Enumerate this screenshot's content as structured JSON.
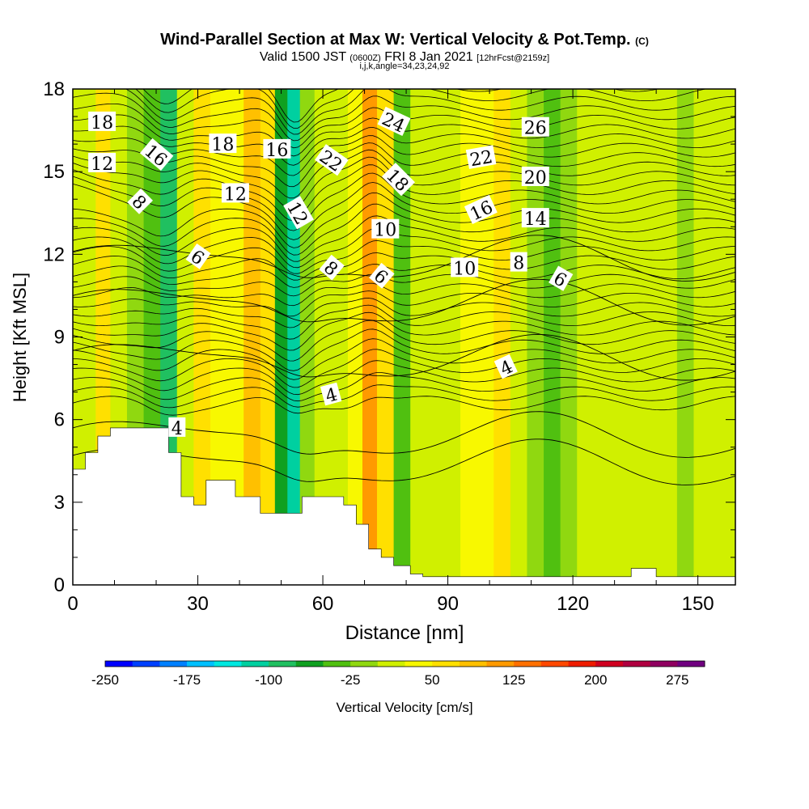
{
  "title": {
    "main": "Wind-Parallel Section at Max W: Vertical Velocity & Pot.Temp.",
    "copyright": "(C)",
    "valid_prefix": "Valid 1500 JST",
    "valid_utc": "(0600Z)",
    "valid_date": "FRI 8 Jan 2021",
    "forecast": "[12hrFcst@2159z]",
    "indices": "i,j,k,angle=34,23,24,92"
  },
  "chart_data": {
    "type": "heatmap",
    "xlabel": "Distance [nm]",
    "ylabel": "Height [Kft MSL]",
    "xlim": [
      0,
      159
    ],
    "ylim": [
      0,
      18
    ],
    "xticks": [
      0,
      30,
      60,
      90,
      120,
      150
    ],
    "yticks": [
      0,
      3,
      6,
      9,
      12,
      15,
      18
    ],
    "colorbar": {
      "label": "Vertical Velocity [cm/s]",
      "range": [
        -250,
        300
      ],
      "step": 25,
      "tick_values": [
        -250,
        -175,
        -100,
        -25,
        50,
        125,
        200,
        275
      ],
      "tick_labels": [
        "-250",
        "-175",
        "-100",
        "-25",
        "50",
        "125",
        "200",
        "275"
      ],
      "colors": [
        "#0000ff",
        "#0040ff",
        "#0080ff",
        "#00c0ff",
        "#00e8e0",
        "#00d0a0",
        "#20c060",
        "#10a020",
        "#50c010",
        "#90d810",
        "#d0f000",
        "#f8f800",
        "#ffe000",
        "#ffc000",
        "#ff9a00",
        "#ff7000",
        "#ff4800",
        "#ee1c00",
        "#d00020",
        "#b00040",
        "#900060",
        "#700080"
      ]
    },
    "velocity_columns": [
      {
        "x": 0,
        "w": 0
      },
      {
        "x": 4,
        "w": 10
      },
      {
        "x": 7,
        "w": 50
      },
      {
        "x": 11,
        "w": 20
      },
      {
        "x": 15,
        "w": -10
      },
      {
        "x": 19,
        "w": -40
      },
      {
        "x": 23,
        "w": -90
      },
      {
        "x": 27,
        "w": 10
      },
      {
        "x": 31,
        "w": 60
      },
      {
        "x": 35,
        "w": 30
      },
      {
        "x": 39,
        "w": 40
      },
      {
        "x": 43,
        "w": 75
      },
      {
        "x": 47,
        "w": 50
      },
      {
        "x": 50,
        "w": -70
      },
      {
        "x": 53,
        "w": -120
      },
      {
        "x": 56,
        "w": -20
      },
      {
        "x": 60,
        "w": 10
      },
      {
        "x": 64,
        "w": 0
      },
      {
        "x": 68,
        "w": 40
      },
      {
        "x": 71,
        "w": 120
      },
      {
        "x": 75,
        "w": 60
      },
      {
        "x": 79,
        "w": -30
      },
      {
        "x": 83,
        "w": 0
      },
      {
        "x": 87,
        "w": 20
      },
      {
        "x": 91,
        "w": 10
      },
      {
        "x": 95,
        "w": 40
      },
      {
        "x": 99,
        "w": 45
      },
      {
        "x": 103,
        "w": 60
      },
      {
        "x": 107,
        "w": 10
      },
      {
        "x": 111,
        "w": -10
      },
      {
        "x": 115,
        "w": -40
      },
      {
        "x": 119,
        "w": -20
      },
      {
        "x": 123,
        "w": 0
      },
      {
        "x": 127,
        "w": 20
      },
      {
        "x": 131,
        "w": 10
      },
      {
        "x": 135,
        "w": 20
      },
      {
        "x": 139,
        "w": 10
      },
      {
        "x": 143,
        "w": 0
      },
      {
        "x": 147,
        "w": -10
      },
      {
        "x": 151,
        "w": 0
      },
      {
        "x": 155,
        "w": 10
      },
      {
        "x": 159,
        "w": 10
      }
    ],
    "terrain": [
      [
        0,
        4.2
      ],
      [
        3,
        4.2
      ],
      [
        3,
        4.8
      ],
      [
        6,
        4.8
      ],
      [
        6,
        5.4
      ],
      [
        9,
        5.4
      ],
      [
        9,
        5.7
      ],
      [
        23,
        5.7
      ],
      [
        23,
        4.8
      ],
      [
        26,
        4.8
      ],
      [
        26,
        3.2
      ],
      [
        29,
        3.2
      ],
      [
        29,
        2.9
      ],
      [
        32,
        2.9
      ],
      [
        32,
        3.8
      ],
      [
        39,
        3.8
      ],
      [
        39,
        3.2
      ],
      [
        45,
        3.2
      ],
      [
        45,
        2.6
      ],
      [
        55,
        2.6
      ],
      [
        55,
        3.2
      ],
      [
        65,
        3.2
      ],
      [
        65,
        2.9
      ],
      [
        68,
        2.9
      ],
      [
        68,
        2.2
      ],
      [
        71,
        2.2
      ],
      [
        71,
        1.3
      ],
      [
        74,
        1.3
      ],
      [
        74,
        1.0
      ],
      [
        77,
        1.0
      ],
      [
        77,
        0.7
      ],
      [
        81,
        0.7
      ],
      [
        81,
        0.4
      ],
      [
        84,
        0.4
      ],
      [
        84,
        0.3
      ],
      [
        134,
        0.3
      ],
      [
        134,
        0.6
      ],
      [
        140,
        0.6
      ],
      [
        140,
        0.3
      ],
      [
        159,
        0.3
      ],
      [
        159,
        0
      ],
      [
        0,
        0
      ]
    ],
    "contour_labels": [
      {
        "text": "18",
        "x": 7,
        "y": 16.8,
        "angle": 0
      },
      {
        "text": "12",
        "x": 7,
        "y": 15.3,
        "angle": 0
      },
      {
        "text": "16",
        "x": 20,
        "y": 15.6,
        "angle": 40
      },
      {
        "text": "8",
        "x": 16,
        "y": 13.9,
        "angle": 45
      },
      {
        "text": "18",
        "x": 36,
        "y": 16.0,
        "angle": 0
      },
      {
        "text": "12",
        "x": 39,
        "y": 14.2,
        "angle": 0
      },
      {
        "text": "6",
        "x": 30,
        "y": 11.9,
        "angle": 35
      },
      {
        "text": "16",
        "x": 49,
        "y": 15.8,
        "angle": 0
      },
      {
        "text": "12",
        "x": 54,
        "y": 13.5,
        "angle": 60
      },
      {
        "text": "22",
        "x": 62,
        "y": 15.4,
        "angle": 35
      },
      {
        "text": "8",
        "x": 62,
        "y": 11.5,
        "angle": 40
      },
      {
        "text": "24",
        "x": 77,
        "y": 16.8,
        "angle": 25
      },
      {
        "text": "18",
        "x": 78,
        "y": 14.7,
        "angle": 45
      },
      {
        "text": "10",
        "x": 75,
        "y": 12.9,
        "angle": 0
      },
      {
        "text": "6",
        "x": 74,
        "y": 11.2,
        "angle": 40
      },
      {
        "text": "22",
        "x": 98,
        "y": 15.5,
        "angle": -10
      },
      {
        "text": "16",
        "x": 98,
        "y": 13.6,
        "angle": -25
      },
      {
        "text": "10",
        "x": 94,
        "y": 11.5,
        "angle": 0
      },
      {
        "text": "26",
        "x": 111,
        "y": 16.6,
        "angle": 0
      },
      {
        "text": "20",
        "x": 111,
        "y": 14.8,
        "angle": 0
      },
      {
        "text": "14",
        "x": 111,
        "y": 13.3,
        "angle": 0
      },
      {
        "text": "8",
        "x": 107,
        "y": 11.7,
        "angle": 0
      },
      {
        "text": "6",
        "x": 117,
        "y": 11.1,
        "angle": 30
      },
      {
        "text": "4",
        "x": 104,
        "y": 7.9,
        "angle": -25
      },
      {
        "text": "4",
        "x": 62,
        "y": 6.9,
        "angle": -15
      },
      {
        "text": "4",
        "x": 25,
        "y": 5.7,
        "angle": 0
      }
    ]
  }
}
